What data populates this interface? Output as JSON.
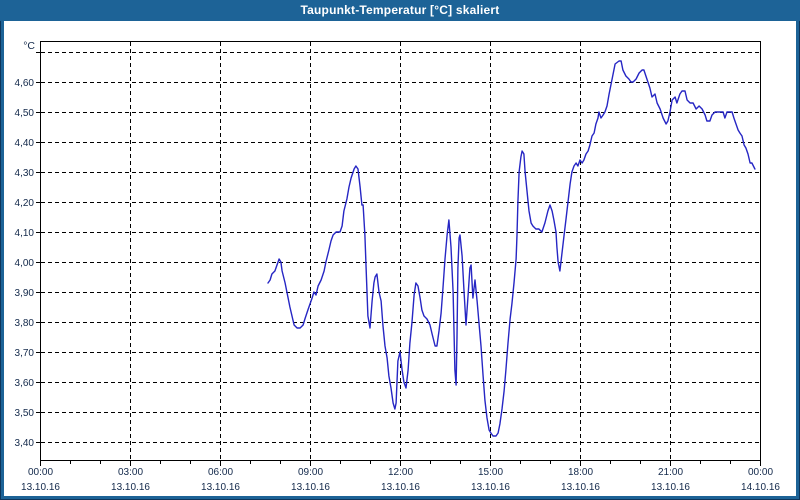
{
  "window": {
    "title": "Taupunkt-Temperatur [°C] skaliert"
  },
  "chart_data": {
    "type": "line",
    "title": "Taupunkt-Temperatur [°C] skaliert",
    "y_unit_label": "°C",
    "xlabel": "",
    "ylabel": "°C",
    "grid": "dashed",
    "legend_position": "none",
    "line_color": "#2626c4",
    "grid_color": "#000000",
    "label_color": "#13294b",
    "titlebar_color": "#1d6397",
    "y_axis": {
      "min": 3.337,
      "max": 4.737,
      "gridline_values": [
        3.4,
        3.5,
        3.6,
        3.7,
        3.8,
        3.9,
        4.0,
        4.1,
        4.2,
        4.3,
        4.4,
        4.5,
        4.6,
        4.7
      ],
      "tick_labels": [
        {
          "value": 3.4,
          "label": "3,40"
        },
        {
          "value": 3.5,
          "label": "3,50"
        },
        {
          "value": 3.6,
          "label": "3,60"
        },
        {
          "value": 3.7,
          "label": "3,70"
        },
        {
          "value": 3.8,
          "label": "3,80"
        },
        {
          "value": 3.9,
          "label": "3,90"
        },
        {
          "value": 4.0,
          "label": "4,00"
        },
        {
          "value": 4.1,
          "label": "4,10"
        },
        {
          "value": 4.2,
          "label": "4,20"
        },
        {
          "value": 4.3,
          "label": "4,30"
        },
        {
          "value": 4.4,
          "label": "4,40"
        },
        {
          "value": 4.5,
          "label": "4,50"
        },
        {
          "value": 4.6,
          "label": "4,60"
        },
        {
          "value": 4.7,
          "label": ""
        }
      ]
    },
    "x_axis": {
      "min_hours": 0,
      "max_hours": 24,
      "major_step_hours": 3,
      "minor_step_hours": 1,
      "tick_labels": [
        {
          "hours": 0,
          "time": "00:00",
          "date": "13.10.16"
        },
        {
          "hours": 3,
          "time": "03:00",
          "date": "13.10.16"
        },
        {
          "hours": 6,
          "time": "06:00",
          "date": "13.10.16"
        },
        {
          "hours": 9,
          "time": "09:00",
          "date": "13.10.16"
        },
        {
          "hours": 12,
          "time": "12:00",
          "date": "13.10.16"
        },
        {
          "hours": 15,
          "time": "15:00",
          "date": "13.10.16"
        },
        {
          "hours": 18,
          "time": "18:00",
          "date": "13.10.16"
        },
        {
          "hours": 21,
          "time": "21:00",
          "date": "13.10.16"
        },
        {
          "hours": 24,
          "time": "00:00",
          "date": "14.10.16"
        }
      ]
    },
    "series": [
      {
        "name": "Taupunkt-Temperatur",
        "points": [
          [
            7.6,
            3.93
          ],
          [
            7.67,
            3.94
          ],
          [
            7.73,
            3.96
          ],
          [
            7.83,
            3.97
          ],
          [
            7.9,
            3.99
          ],
          [
            7.97,
            4.01
          ],
          [
            8.03,
            4.0
          ],
          [
            8.07,
            3.97
          ],
          [
            8.17,
            3.93
          ],
          [
            8.23,
            3.9
          ],
          [
            8.33,
            3.85
          ],
          [
            8.4,
            3.82
          ],
          [
            8.47,
            3.79
          ],
          [
            8.57,
            3.78
          ],
          [
            8.67,
            3.78
          ],
          [
            8.77,
            3.79
          ],
          [
            8.83,
            3.81
          ],
          [
            8.93,
            3.84
          ],
          [
            9.0,
            3.86
          ],
          [
            9.07,
            3.88
          ],
          [
            9.13,
            3.9
          ],
          [
            9.2,
            3.89
          ],
          [
            9.27,
            3.92
          ],
          [
            9.37,
            3.94
          ],
          [
            9.47,
            3.97
          ],
          [
            9.53,
            4.0
          ],
          [
            9.63,
            4.04
          ],
          [
            9.7,
            4.07
          ],
          [
            9.77,
            4.09
          ],
          [
            9.87,
            4.1
          ],
          [
            10.0,
            4.1
          ],
          [
            10.07,
            4.12
          ],
          [
            10.13,
            4.17
          ],
          [
            10.23,
            4.21
          ],
          [
            10.3,
            4.25
          ],
          [
            10.37,
            4.28
          ],
          [
            10.47,
            4.31
          ],
          [
            10.53,
            4.32
          ],
          [
            10.6,
            4.31
          ],
          [
            10.67,
            4.25
          ],
          [
            10.73,
            4.19
          ],
          [
            10.77,
            4.19
          ],
          [
            10.83,
            4.09
          ],
          [
            10.87,
            3.98
          ],
          [
            10.9,
            3.9
          ],
          [
            10.93,
            3.82
          ],
          [
            11.0,
            3.78
          ],
          [
            11.07,
            3.87
          ],
          [
            11.13,
            3.93
          ],
          [
            11.17,
            3.95
          ],
          [
            11.23,
            3.96
          ],
          [
            11.3,
            3.9
          ],
          [
            11.37,
            3.87
          ],
          [
            11.43,
            3.79
          ],
          [
            11.5,
            3.72
          ],
          [
            11.57,
            3.68
          ],
          [
            11.63,
            3.62
          ],
          [
            11.7,
            3.58
          ],
          [
            11.77,
            3.53
          ],
          [
            11.83,
            3.51
          ],
          [
            11.87,
            3.53
          ],
          [
            11.9,
            3.6
          ],
          [
            11.93,
            3.67
          ],
          [
            12.0,
            3.7
          ],
          [
            12.07,
            3.64
          ],
          [
            12.13,
            3.6
          ],
          [
            12.2,
            3.58
          ],
          [
            12.27,
            3.64
          ],
          [
            12.33,
            3.73
          ],
          [
            12.4,
            3.8
          ],
          [
            12.47,
            3.89
          ],
          [
            12.53,
            3.93
          ],
          [
            12.6,
            3.92
          ],
          [
            12.67,
            3.88
          ],
          [
            12.73,
            3.84
          ],
          [
            12.8,
            3.82
          ],
          [
            12.9,
            3.81
          ],
          [
            13.0,
            3.79
          ],
          [
            13.07,
            3.76
          ],
          [
            13.17,
            3.72
          ],
          [
            13.23,
            3.72
          ],
          [
            13.3,
            3.77
          ],
          [
            13.37,
            3.83
          ],
          [
            13.43,
            3.91
          ],
          [
            13.5,
            4.01
          ],
          [
            13.57,
            4.09
          ],
          [
            13.63,
            4.14
          ],
          [
            13.7,
            4.05
          ],
          [
            13.77,
            3.9
          ],
          [
            13.83,
            3.64
          ],
          [
            13.87,
            3.59
          ],
          [
            13.9,
            3.75
          ],
          [
            13.93,
            3.98
          ],
          [
            13.97,
            4.08
          ],
          [
            14.0,
            4.09
          ],
          [
            14.07,
            4.02
          ],
          [
            14.13,
            3.91
          ],
          [
            14.2,
            3.79
          ],
          [
            14.27,
            3.89
          ],
          [
            14.33,
            3.98
          ],
          [
            14.37,
            3.99
          ],
          [
            14.43,
            3.88
          ],
          [
            14.5,
            3.94
          ],
          [
            14.57,
            3.87
          ],
          [
            14.63,
            3.8
          ],
          [
            14.7,
            3.72
          ],
          [
            14.77,
            3.62
          ],
          [
            14.83,
            3.54
          ],
          [
            14.9,
            3.48
          ],
          [
            14.97,
            3.44
          ],
          [
            15.03,
            3.43
          ],
          [
            15.1,
            3.42
          ],
          [
            15.2,
            3.42
          ],
          [
            15.27,
            3.43
          ],
          [
            15.33,
            3.46
          ],
          [
            15.4,
            3.51
          ],
          [
            15.47,
            3.57
          ],
          [
            15.53,
            3.64
          ],
          [
            15.6,
            3.73
          ],
          [
            15.67,
            3.81
          ],
          [
            15.73,
            3.86
          ],
          [
            15.8,
            3.93
          ],
          [
            15.87,
            4.01
          ],
          [
            15.9,
            4.09
          ],
          [
            15.93,
            4.2
          ],
          [
            15.97,
            4.3
          ],
          [
            16.03,
            4.35
          ],
          [
            16.07,
            4.37
          ],
          [
            16.13,
            4.36
          ],
          [
            16.17,
            4.3
          ],
          [
            16.23,
            4.24
          ],
          [
            16.3,
            4.17
          ],
          [
            16.37,
            4.13
          ],
          [
            16.43,
            4.12
          ],
          [
            16.53,
            4.11
          ],
          [
            16.63,
            4.11
          ],
          [
            16.73,
            4.1
          ],
          [
            16.83,
            4.13
          ],
          [
            16.93,
            4.17
          ],
          [
            17.0,
            4.19
          ],
          [
            17.07,
            4.17
          ],
          [
            17.13,
            4.14
          ],
          [
            17.2,
            4.1
          ],
          [
            17.23,
            4.05
          ],
          [
            17.27,
            4.0
          ],
          [
            17.33,
            3.97
          ],
          [
            17.4,
            4.03
          ],
          [
            17.47,
            4.09
          ],
          [
            17.53,
            4.14
          ],
          [
            17.6,
            4.2
          ],
          [
            17.67,
            4.26
          ],
          [
            17.73,
            4.3
          ],
          [
            17.8,
            4.32
          ],
          [
            17.87,
            4.33
          ],
          [
            17.93,
            4.32
          ],
          [
            18.0,
            4.34
          ],
          [
            18.07,
            4.33
          ],
          [
            18.13,
            4.34
          ],
          [
            18.2,
            4.36
          ],
          [
            18.27,
            4.37
          ],
          [
            18.33,
            4.39
          ],
          [
            18.4,
            4.42
          ],
          [
            18.47,
            4.43
          ],
          [
            18.53,
            4.46
          ],
          [
            18.6,
            4.48
          ],
          [
            18.63,
            4.5
          ],
          [
            18.7,
            4.48
          ],
          [
            18.77,
            4.49
          ],
          [
            18.83,
            4.5
          ],
          [
            18.9,
            4.52
          ],
          [
            18.97,
            4.56
          ],
          [
            19.07,
            4.61
          ],
          [
            19.17,
            4.66
          ],
          [
            19.3,
            4.67
          ],
          [
            19.37,
            4.67
          ],
          [
            19.43,
            4.64
          ],
          [
            19.53,
            4.62
          ],
          [
            19.63,
            4.61
          ],
          [
            19.7,
            4.6
          ],
          [
            19.77,
            4.6
          ],
          [
            19.87,
            4.61
          ],
          [
            19.97,
            4.63
          ],
          [
            20.07,
            4.64
          ],
          [
            20.13,
            4.64
          ],
          [
            20.23,
            4.61
          ],
          [
            20.33,
            4.58
          ],
          [
            20.4,
            4.55
          ],
          [
            20.5,
            4.56
          ],
          [
            20.57,
            4.53
          ],
          [
            20.67,
            4.51
          ],
          [
            20.77,
            4.48
          ],
          [
            20.87,
            4.46
          ],
          [
            20.93,
            4.47
          ],
          [
            21.0,
            4.5
          ],
          [
            21.07,
            4.54
          ],
          [
            21.17,
            4.55
          ],
          [
            21.23,
            4.53
          ],
          [
            21.33,
            4.56
          ],
          [
            21.4,
            4.57
          ],
          [
            21.5,
            4.57
          ],
          [
            21.57,
            4.54
          ],
          [
            21.67,
            4.53
          ],
          [
            21.77,
            4.53
          ],
          [
            21.87,
            4.51
          ],
          [
            21.97,
            4.52
          ],
          [
            22.07,
            4.51
          ],
          [
            22.17,
            4.49
          ],
          [
            22.23,
            4.47
          ],
          [
            22.33,
            4.47
          ],
          [
            22.4,
            4.49
          ],
          [
            22.5,
            4.5
          ],
          [
            22.6,
            4.5
          ],
          [
            22.7,
            4.5
          ],
          [
            22.77,
            4.5
          ],
          [
            22.83,
            4.48
          ],
          [
            22.9,
            4.5
          ],
          [
            23.0,
            4.5
          ],
          [
            23.07,
            4.5
          ],
          [
            23.13,
            4.48
          ],
          [
            23.2,
            4.46
          ],
          [
            23.27,
            4.44
          ],
          [
            23.33,
            4.43
          ],
          [
            23.4,
            4.42
          ],
          [
            23.47,
            4.39
          ],
          [
            23.53,
            4.38
          ],
          [
            23.6,
            4.36
          ],
          [
            23.67,
            4.33
          ],
          [
            23.73,
            4.33
          ],
          [
            23.83,
            4.31
          ]
        ]
      }
    ]
  }
}
